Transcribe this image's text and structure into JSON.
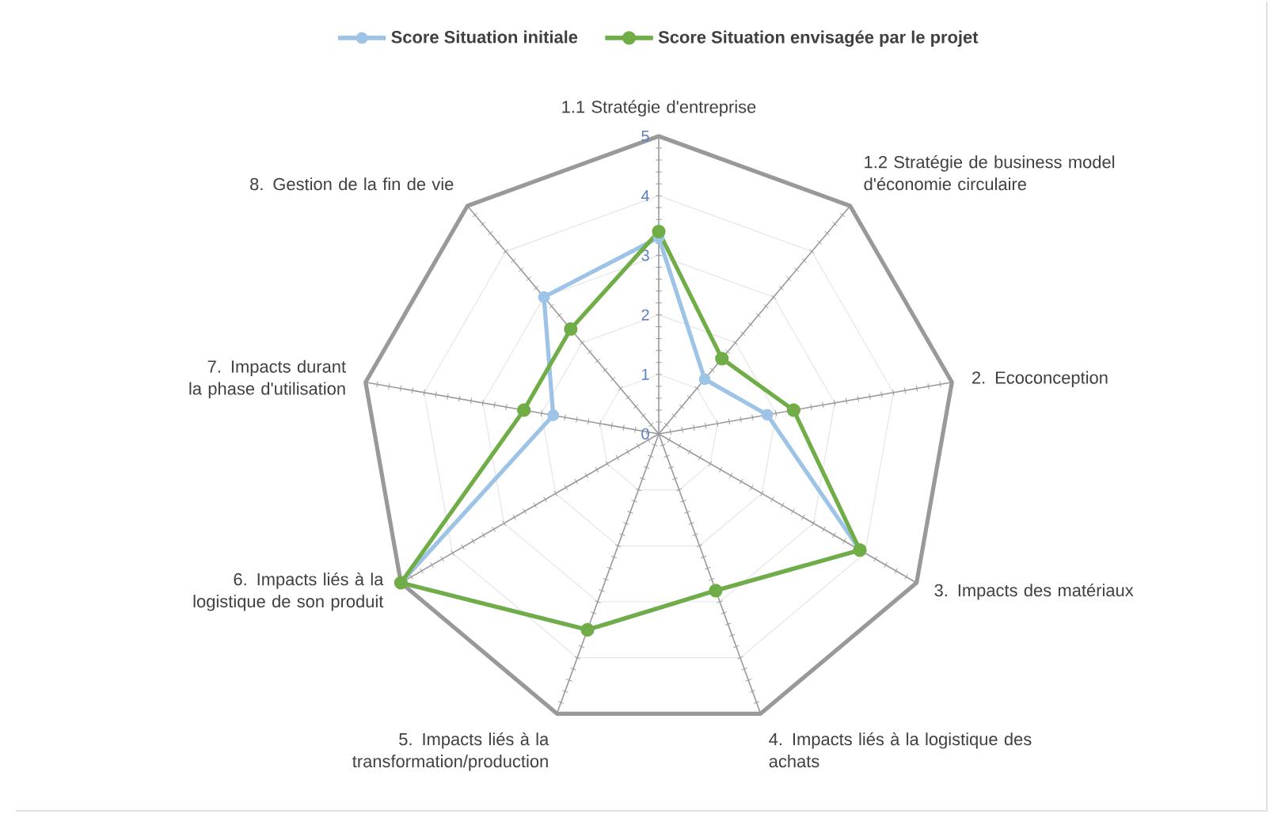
{
  "chart_data": {
    "type": "radar",
    "categories": [
      "1.1 Stratégie d'entreprise",
      "1.2 Stratégie de business model d'économie circulaire",
      "2. Ecoconception",
      "3. Impacts des matériaux",
      "4. Impacts liés à la logistique des achats",
      "5. Impacts liés à la transformation/production",
      "6. Impacts liés à la logistique de son produit",
      "7. Impacts durant la phase d'utilisation",
      "8. Gestion de la fin de vie"
    ],
    "series": [
      {
        "name": "Score Situation initiale",
        "color": "#9dc3e6",
        "values": [
          3.3,
          1.2,
          1.85,
          3.9,
          2.8,
          3.5,
          5,
          1.8,
          3.0
        ]
      },
      {
        "name": "Score Situation envisagée par le projet",
        "color": "#70ad47",
        "values": [
          3.4,
          1.65,
          2.3,
          3.9,
          2.8,
          3.5,
          5,
          2.3,
          2.3
        ]
      }
    ],
    "ylim": [
      0,
      5
    ],
    "yticks": [
      0,
      1,
      2,
      3,
      4,
      5
    ],
    "grid": true,
    "legend": "top",
    "marker": "circle"
  }
}
